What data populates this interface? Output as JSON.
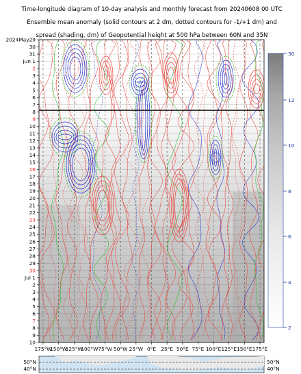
{
  "chart_data": {
    "type": "heatmap",
    "title_lines": [
      "Time-longitude diagram of 10-day analysis and monthly forecast from 20240608 00 UTC",
      "Ensemble mean anomaly (solid contours at 2 dm, dotted contours for -1/+1 dm) and",
      "spread (shading, dm) of Geopotential height at 500 hPa between 60N and 35N"
    ],
    "x_tick_labels": [
      "175°W",
      "150°W",
      "125°W",
      "100°W",
      "75°W",
      "50°W",
      "25°W",
      "0°E",
      "25°E",
      "50°E",
      "75°E",
      "100°E",
      "125°E",
      "150°E",
      "175°E"
    ],
    "x_values": [
      -175,
      -150,
      -125,
      -100,
      -75,
      -50,
      -25,
      0,
      25,
      50,
      75,
      100,
      125,
      150,
      175
    ],
    "y_tick_labels": [
      {
        "text": "2024May29",
        "color": "black"
      },
      {
        "text": "30",
        "color": "black"
      },
      {
        "text": "31",
        "color": "black"
      },
      {
        "text": "Jun 1",
        "color": "black"
      },
      {
        "text": "2",
        "color": "red"
      },
      {
        "text": "3",
        "color": "black"
      },
      {
        "text": "4",
        "color": "black"
      },
      {
        "text": "5",
        "color": "black"
      },
      {
        "text": "6",
        "color": "black"
      },
      {
        "text": "7",
        "color": "black"
      },
      {
        "text": "8",
        "color": "black"
      },
      {
        "text": "9",
        "color": "red"
      },
      {
        "text": "10",
        "color": "black"
      },
      {
        "text": "11",
        "color": "black"
      },
      {
        "text": "12",
        "color": "black"
      },
      {
        "text": "13",
        "color": "black"
      },
      {
        "text": "14",
        "color": "black"
      },
      {
        "text": "15",
        "color": "black"
      },
      {
        "text": "16",
        "color": "red"
      },
      {
        "text": "17",
        "color": "black"
      },
      {
        "text": "18",
        "color": "black"
      },
      {
        "text": "19",
        "color": "black"
      },
      {
        "text": "20",
        "color": "black"
      },
      {
        "text": "21",
        "color": "black"
      },
      {
        "text": "22",
        "color": "black"
      },
      {
        "text": "23",
        "color": "red"
      },
      {
        "text": "24",
        "color": "black"
      },
      {
        "text": "25",
        "color": "black"
      },
      {
        "text": "26",
        "color": "black"
      },
      {
        "text": "27",
        "color": "black"
      },
      {
        "text": "28",
        "color": "black"
      },
      {
        "text": "29",
        "color": "black"
      },
      {
        "text": "30",
        "color": "red"
      },
      {
        "text": "Jul 1",
        "color": "black"
      },
      {
        "text": "2",
        "color": "black"
      },
      {
        "text": "3",
        "color": "black"
      },
      {
        "text": "4",
        "color": "black"
      },
      {
        "text": "5",
        "color": "black"
      },
      {
        "text": "6",
        "color": "black"
      },
      {
        "text": "7",
        "color": "red"
      },
      {
        "text": "8",
        "color": "black"
      },
      {
        "text": "9",
        "color": "black"
      },
      {
        "text": "10",
        "color": "black"
      }
    ],
    "analysis_end_label": "8",
    "colorbar": {
      "ticks": [
        "30",
        "12",
        "10",
        "8",
        "6",
        "4",
        "2"
      ],
      "tick_colors": [
        "#1f3fa0",
        "#1f3fa0",
        "#1f3fa0",
        "#1f3fa0",
        "#1f3fa0",
        "#1f3fa0",
        "#1f3fa0"
      ],
      "shade_light": "#ffffff",
      "shade_dark": "#8a8a8a"
    },
    "map_lat_labels": [
      "50°N",
      "40°N"
    ],
    "contour_colors": {
      "positive": "#e8443a",
      "negative": "#2233cc",
      "zero": "#22bb22"
    },
    "grid": true
  }
}
